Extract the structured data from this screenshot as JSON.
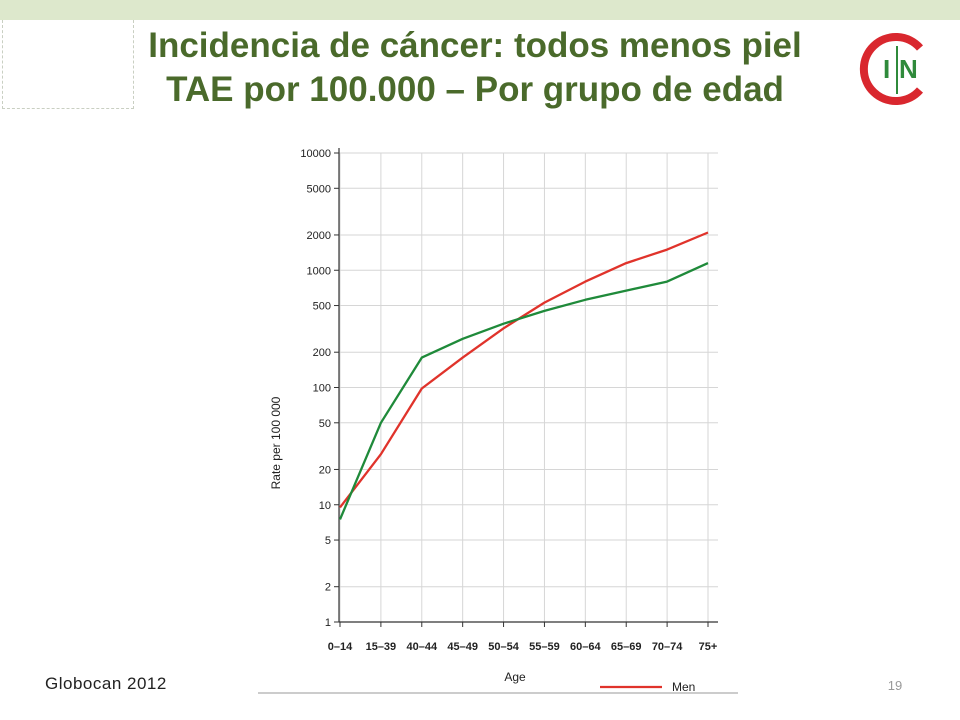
{
  "slide": {
    "title_line1": "Incidencia de cáncer: todos menos piel",
    "title_line2": "TAE por 100.000 – Por grupo de edad",
    "source": "Globocan 2012",
    "page_number": "19",
    "logo_letters": "C I N",
    "colors": {
      "title": "#4a6a2b",
      "top_band": "#dde8cc",
      "logo_red": "#d9272e",
      "logo_green": "#2f8a3b"
    }
  },
  "chart_data": {
    "type": "line",
    "title": "",
    "xlabel": "Age",
    "ylabel": "Rate per 100 000",
    "y_scale": "log",
    "ylim": [
      1,
      10000
    ],
    "y_ticks": [
      1,
      2,
      5,
      10,
      20,
      50,
      100,
      200,
      500,
      1000,
      2000,
      5000,
      10000
    ],
    "y_tick_labels": [
      "1",
      "2",
      "5",
      "10",
      "20",
      "50",
      "100",
      "200",
      "500",
      "1000",
      "2000",
      "5000",
      "10000"
    ],
    "categories": [
      "0–14",
      "15–39",
      "40–44",
      "45–49",
      "50–54",
      "55–59",
      "60–64",
      "65–69",
      "70–74",
      "75+"
    ],
    "grid": true,
    "legend_position": "bottom",
    "series": [
      {
        "name": "Men",
        "color": "#e0332b",
        "values": [
          9.5,
          27,
          98,
          180,
          320,
          530,
          800,
          1150,
          1500,
          2100
        ]
      },
      {
        "color": "#1f8a3a",
        "values": [
          7.5,
          50,
          180,
          260,
          350,
          450,
          560,
          670,
          800,
          1150
        ]
      }
    ]
  }
}
